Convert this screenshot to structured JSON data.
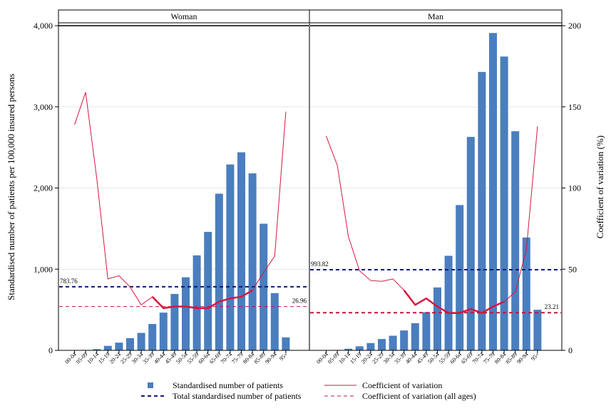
{
  "chart_data": {
    "type": "bar",
    "panels": [
      {
        "name": "Woman",
        "total_label": "783.76",
        "total_value": 783.76,
        "cv_all_label": "26.96",
        "cv_all_value": 26.96
      },
      {
        "name": "Man",
        "total_label": "993.82",
        "total_value": 993.82,
        "cv_all_label": "23.21",
        "cv_all_value": 23.21
      }
    ],
    "categories": [
      "00-04",
      "05-09",
      "10-14",
      "15-19",
      "20-24",
      "25-29",
      "30-34",
      "35-39",
      "40-44",
      "45-49",
      "50-54",
      "55-59",
      "60-64",
      "65-69",
      "70-74",
      "75-79",
      "80-84",
      "85-89",
      "90-94",
      "95+"
    ],
    "series": [
      {
        "name": "Standardised number of patients",
        "panel": "Woman",
        "axis": "left",
        "values": [
          0,
          5,
          15,
          55,
          95,
          150,
          215,
          325,
          465,
          695,
          900,
          1170,
          1460,
          1930,
          2290,
          2440,
          2180,
          1560,
          705,
          160
        ]
      },
      {
        "name": "Standardised number of patients",
        "panel": "Man",
        "axis": "left",
        "values": [
          0,
          5,
          20,
          50,
          90,
          140,
          180,
          245,
          335,
          470,
          775,
          1165,
          1790,
          2630,
          3430,
          3910,
          3620,
          2700,
          1390,
          500
        ]
      },
      {
        "name": "Coefficient of variation",
        "panel": "Woman",
        "axis": "right",
        "values": [
          139,
          159,
          106,
          44,
          46,
          39,
          28,
          33,
          26,
          27,
          27,
          26,
          26,
          30,
          32,
          33,
          37,
          48,
          58,
          147
        ]
      },
      {
        "name": "Coefficient of variation",
        "panel": "Man",
        "axis": "right",
        "values": [
          132,
          114,
          70,
          49,
          43,
          42.5,
          44,
          37,
          28,
          32,
          27,
          23,
          23,
          25.5,
          23,
          27,
          30,
          36,
          62,
          138
        ]
      }
    ],
    "legend": {
      "bars": "Standardised number of patients",
      "cv": "Coefficient of variation",
      "total": "Total standardised number of patients",
      "cv_all": "Coefficient of variation (all ages)"
    },
    "ylabel": "Standardised number of patients per 100,000 insured persons",
    "y2label": "Coefficient of variation (%)",
    "ylim": [
      0,
      4000
    ],
    "y2lim": [
      0,
      200
    ],
    "yticks": [
      "0",
      "1,000",
      "2,000",
      "3,000",
      "4,000"
    ],
    "y2ticks": [
      "0",
      "50",
      "100",
      "150",
      "200"
    ],
    "grid": true,
    "legend_position": "bottom",
    "colors": {
      "bar": "#4a7ebf",
      "cv": "#d6173d",
      "total": "#0d1a7a",
      "cv_all": "#c2183a"
    }
  }
}
